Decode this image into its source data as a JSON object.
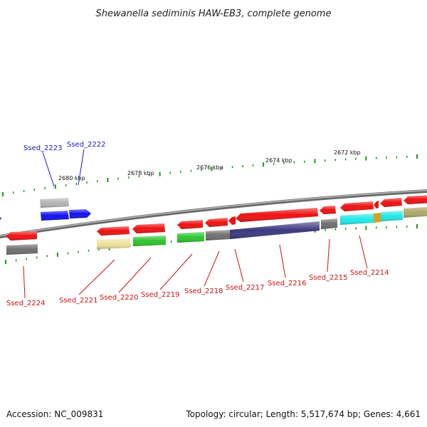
{
  "title": "Shewanella sediminis HAW-EB3, complete genome",
  "kbp_ticks": [
    "2680 kbp",
    "2678 kbp",
    "2676 kbp",
    "2674 kbp",
    "2672 kbp"
  ],
  "genes_forward": [
    "Ssed_2223",
    "Ssed_2222"
  ],
  "genes_reverse": [
    "Ssed_2224",
    "Ssed_2221",
    "Ssed_2220",
    "Ssed_2219",
    "Ssed_2218",
    "Ssed_2217",
    "Ssed_2216",
    "Ssed_2215",
    "Ssed_2214"
  ],
  "colors": {
    "forward_label": "#1a1acc",
    "reverse_label": "#cc1111",
    "gene_red": "#ee1111",
    "gene_blue": "#1111ee",
    "gene_green": "#2ec42e",
    "gene_yellow": "#eee29a",
    "gene_purple": "#3b3880",
    "gene_cyan": "#22e8e8",
    "gene_gray": "#6e6e6e",
    "gene_silver": "#b4b4b4",
    "gene_olive": "#b0a86a",
    "gene_orange": "#d8a020",
    "tick_green": "#1a9a1a",
    "backbone": "#8a8a8a"
  },
  "footer": {
    "accession": "Accession: NC_009831",
    "topology": "Topology: circular; Length: 5,517,674 bp; Genes: 4,661"
  }
}
